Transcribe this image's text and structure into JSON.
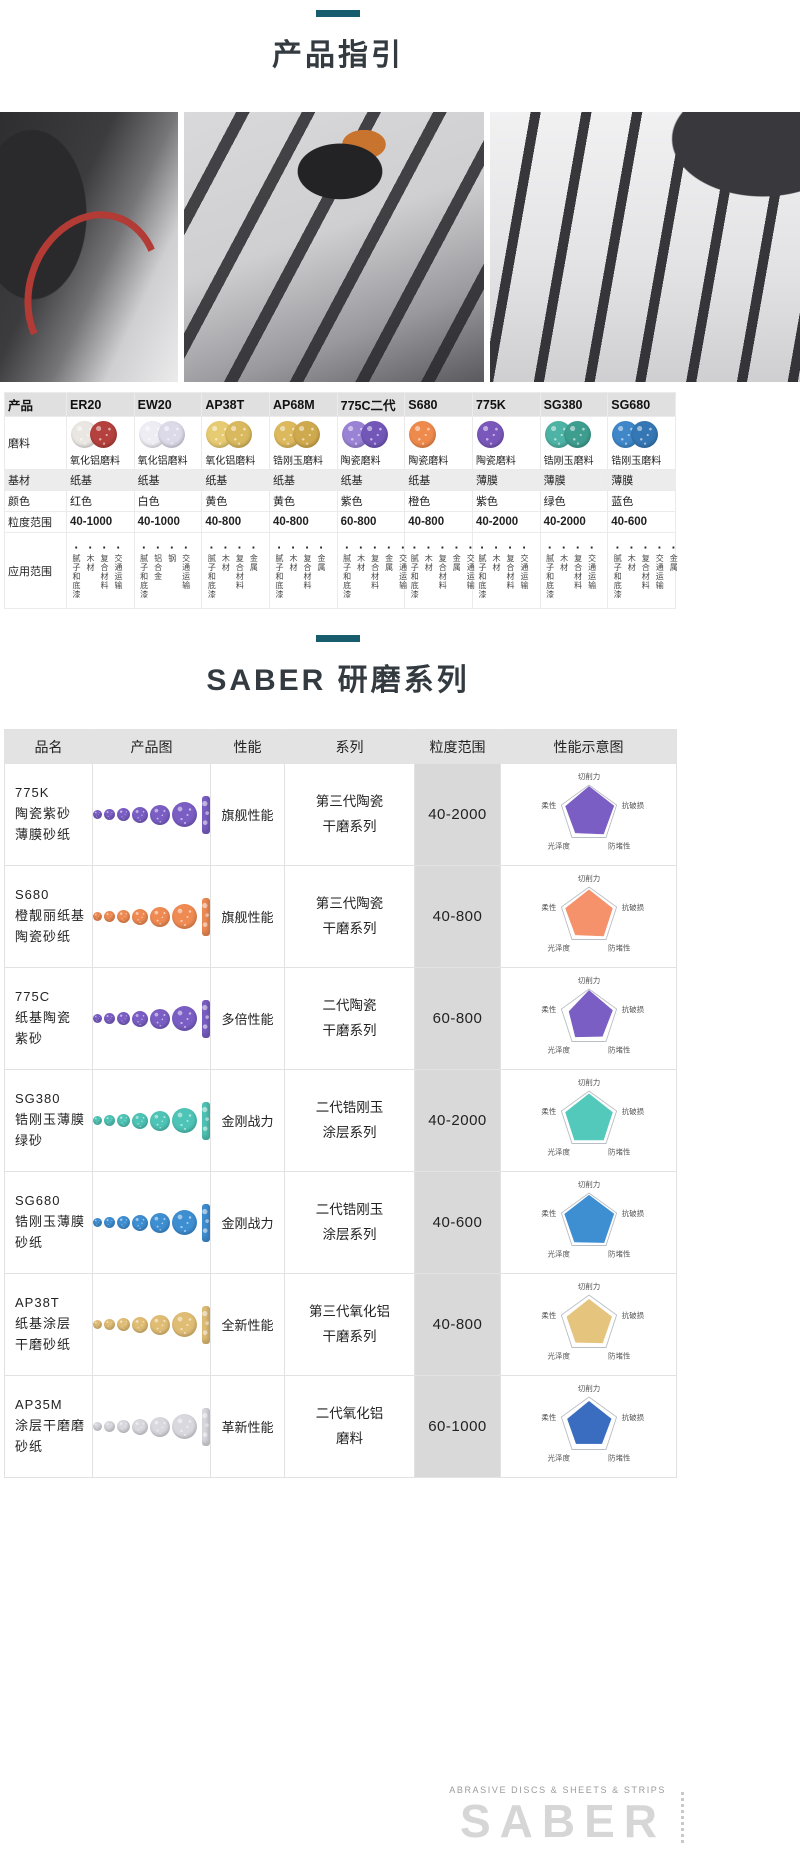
{
  "accent_color": "#175d6d",
  "section1": {
    "title": "产品指引"
  },
  "section2": {
    "title": "SABER  研磨系列"
  },
  "product_table": {
    "corner_label": "产品",
    "row_labels": [
      "磨料",
      "基材",
      "颜色",
      "粒度范围",
      "应用范围"
    ],
    "columns": [
      {
        "name": "ER20",
        "abrasive": "氧化铝磨料",
        "base": "纸基",
        "color_name": "红色",
        "grit": "40-1000",
        "applications": [
          "腻子和底漆",
          "木材",
          "复合材料",
          "交通运输"
        ],
        "disc_colors": [
          "#eae7e3",
          "#b4413d"
        ]
      },
      {
        "name": "EW20",
        "abrasive": "氧化铝磨料",
        "base": "纸基",
        "color_name": "白色",
        "grit": "40-1000",
        "applications": [
          "腻子和底漆",
          "铝合金",
          "钢",
          "交通运输"
        ],
        "disc_colors": [
          "#efedf4",
          "#dcd9e8"
        ]
      },
      {
        "name": "AP38T",
        "abrasive": "氧化铝磨料",
        "base": "纸基",
        "color_name": "黄色",
        "grit": "40-800",
        "applications": [
          "腻子和底漆",
          "木材",
          "复合材料",
          "金属"
        ],
        "disc_colors": [
          "#e7cb72",
          "#d9b95e"
        ]
      },
      {
        "name": "AP68M",
        "abrasive": "锆刚玉磨料",
        "base": "纸基",
        "color_name": "黄色",
        "grit": "40-800",
        "applications": [
          "腻子和底漆",
          "木材",
          "复合材料",
          "金属"
        ],
        "disc_colors": [
          "#ddb95e",
          "#cfa94d"
        ]
      },
      {
        "name": "775C二代",
        "abrasive": "陶瓷磨料",
        "base": "纸基",
        "color_name": "紫色",
        "grit": "60-800",
        "applications": [
          "腻子和底漆",
          "木材",
          "复合材料",
          "金属",
          "交通运输"
        ],
        "disc_colors": [
          "#9a83d4",
          "#7257b8"
        ]
      },
      {
        "name": "S680",
        "abrasive": "陶瓷磨料",
        "base": "纸基",
        "color_name": "橙色",
        "grit": "40-800",
        "applications": [
          "腻子和底漆",
          "木材",
          "复合材料",
          "金属",
          "交通运输"
        ],
        "disc_colors": [
          "#ef8a4d"
        ]
      },
      {
        "name": "775K",
        "abrasive": "陶瓷磨料",
        "base": "薄膜",
        "color_name": "紫色",
        "grit": "40-2000",
        "applications": [
          "腻子和底漆",
          "木材",
          "复合材料",
          "交通运输"
        ],
        "disc_colors": [
          "#7a58bb"
        ]
      },
      {
        "name": "SG380",
        "abrasive": "锆刚玉磨料",
        "base": "薄膜",
        "color_name": "绿色",
        "grit": "40-2000",
        "applications": [
          "腻子和底漆",
          "木材",
          "复合材料",
          "交通运输"
        ],
        "disc_colors": [
          "#4db3a4",
          "#3d9e90"
        ]
      },
      {
        "name": "SG680",
        "abrasive": "锆刚玉磨料",
        "base": "薄膜",
        "color_name": "蓝色",
        "grit": "40-600",
        "applications": [
          "腻子和底漆",
          "木材",
          "复合材料",
          "交通运输",
          "金属"
        ],
        "disc_colors": [
          "#3f87c8",
          "#3577b4"
        ]
      }
    ]
  },
  "series_table": {
    "headers": [
      "品名",
      "产品图",
      "性能",
      "系列",
      "粒度范围",
      "性能示意图"
    ],
    "radar_labels": [
      "切削力",
      "抗破损",
      "防堵性",
      "光泽度",
      "柔性"
    ],
    "rows": [
      {
        "name_lines": [
          "775K",
          "陶瓷紫砂",
          "薄膜砂纸"
        ],
        "disc_color": "#7a5ec4",
        "chart_color": "#7a5ec4",
        "performance": "旗舰性能",
        "series_lines": [
          "第三代陶瓷",
          "干磨系列"
        ],
        "grit": "40-2000",
        "radar": [
          0.95,
          0.9,
          0.85,
          0.8,
          0.85
        ]
      },
      {
        "name_lines": [
          "S680",
          "橙靓丽纸基",
          "陶瓷砂纸"
        ],
        "disc_color": "#ef8a52",
        "chart_color": "#f5926b",
        "performance": "旗舰性能",
        "series_lines": [
          "第三代陶瓷",
          "干磨系列"
        ],
        "grit": "40-800",
        "radar": [
          0.9,
          0.85,
          0.85,
          0.8,
          0.85
        ]
      },
      {
        "name_lines": [
          "775C",
          "纸基陶瓷",
          "紫砂"
        ],
        "disc_color": "#7a5ec4",
        "chart_color": "#7a5ec4",
        "performance": "多倍性能",
        "series_lines": [
          "二代陶瓷",
          "干磨系列"
        ],
        "grit": "60-800",
        "radar": [
          0.95,
          0.85,
          0.78,
          0.8,
          0.72
        ]
      },
      {
        "name_lines": [
          "SG380",
          "锆刚玉薄膜",
          "绿砂"
        ],
        "disc_color": "#4ec4b6",
        "chart_color": "#53c9bc",
        "performance": "金刚战力",
        "series_lines": [
          "二代锆刚玉",
          "涂层系列"
        ],
        "grit": "40-2000",
        "radar": [
          0.9,
          0.85,
          0.85,
          0.85,
          0.85
        ]
      },
      {
        "name_lines": [
          "SG680",
          "锆刚玉薄膜",
          "砂纸"
        ],
        "disc_color": "#3e8ed2",
        "chart_color": "#3e8ed2",
        "performance": "金刚战力",
        "series_lines": [
          "二代锆刚玉",
          "涂层系列"
        ],
        "grit": "40-600",
        "radar": [
          0.92,
          0.9,
          0.88,
          0.85,
          0.88
        ]
      },
      {
        "name_lines": [
          "AP38T",
          "纸基涂层",
          "干磨砂纸"
        ],
        "disc_color": "#e0bd74",
        "chart_color": "#e5c47e",
        "performance": "全新性能",
        "series_lines": [
          "第三代氧化铝",
          "干磨系列"
        ],
        "grit": "40-800",
        "radar": [
          0.85,
          0.82,
          0.8,
          0.78,
          0.8
        ]
      },
      {
        "name_lines": [
          "AP35M",
          "涂层干磨磨",
          "砂纸"
        ],
        "disc_color": "#d8d8de",
        "chart_color": "#3a6cc0",
        "performance": "革新性能",
        "series_lines": [
          "二代氧化铝",
          "磨料"
        ],
        "grit": "60-1000",
        "radar": [
          0.85,
          0.8,
          0.75,
          0.75,
          0.78
        ]
      }
    ]
  },
  "footer": {
    "line1": "ABRASIVE DISCS & SHEETS & STRIPS",
    "brand": "SABER"
  }
}
